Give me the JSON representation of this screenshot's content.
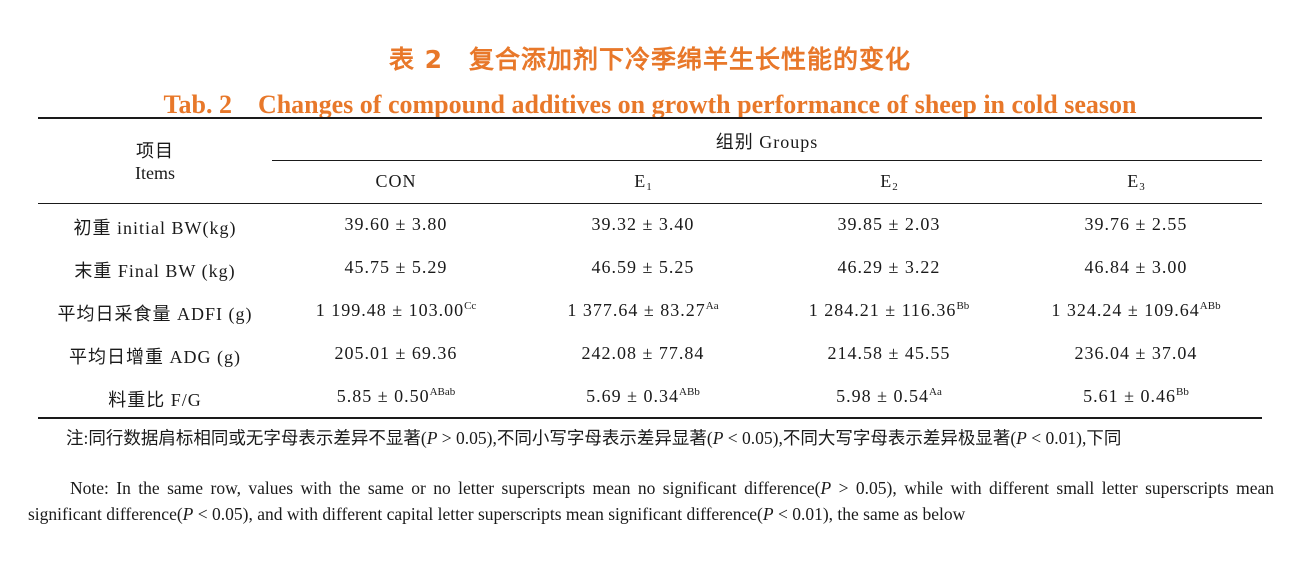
{
  "title": {
    "cn": "表 2　复合添加剂下冷季绵羊生长性能的变化",
    "en": "Tab. 2　Changes of compound additives on growth performance of sheep in cold season"
  },
  "header": {
    "items_cn": "项目",
    "items_en": "Items",
    "groups": "组别 Groups",
    "columns": [
      {
        "main": "CON",
        "sub": ""
      },
      {
        "main": "E",
        "sub": "1"
      },
      {
        "main": "E",
        "sub": "2"
      },
      {
        "main": "E",
        "sub": "3"
      }
    ]
  },
  "rows": [
    {
      "label": "初重 initial BW(kg)",
      "cells": [
        {
          "value": "39.60 ± 3.80",
          "sup": ""
        },
        {
          "value": "39.32 ± 3.40",
          "sup": ""
        },
        {
          "value": "39.85 ± 2.03",
          "sup": ""
        },
        {
          "value": "39.76 ± 2.55",
          "sup": ""
        }
      ]
    },
    {
      "label": "末重 Final BW (kg)",
      "cells": [
        {
          "value": "45.75 ± 5.29",
          "sup": ""
        },
        {
          "value": "46.59 ± 5.25",
          "sup": ""
        },
        {
          "value": "46.29 ± 3.22",
          "sup": ""
        },
        {
          "value": "46.84 ± 3.00",
          "sup": ""
        }
      ]
    },
    {
      "label": "平均日采食量 ADFI (g)",
      "cells": [
        {
          "value": "1 199.48 ± 103.00",
          "sup": "Cc"
        },
        {
          "value": "1 377.64 ± 83.27",
          "sup": "Aa"
        },
        {
          "value": "1 284.21 ± 116.36",
          "sup": "Bb"
        },
        {
          "value": "1 324.24 ± 109.64",
          "sup": "ABb"
        }
      ]
    },
    {
      "label": "平均日增重 ADG (g)",
      "cells": [
        {
          "value": "205.01 ± 69.36",
          "sup": ""
        },
        {
          "value": "242.08 ± 77.84",
          "sup": ""
        },
        {
          "value": "214.58 ± 45.55",
          "sup": ""
        },
        {
          "value": "236.04 ± 37.04",
          "sup": ""
        }
      ]
    },
    {
      "label": "料重比 F/G",
      "cells": [
        {
          "value": "5.85 ± 0.50",
          "sup": "ABab"
        },
        {
          "value": "5.69 ± 0.34",
          "sup": "ABb"
        },
        {
          "value": "5.98 ± 0.54",
          "sup": "Aa"
        },
        {
          "value": "5.61 ± 0.46",
          "sup": "Bb"
        }
      ]
    }
  ],
  "note": {
    "cn_1": "注:同行数据肩标相同或无字母表示差异不显著(",
    "cn_p1": "P",
    "cn_2": " > 0.05),不同小写字母表示差异显著(",
    "cn_p2": "P",
    "cn_3": " < 0.05),不同大写字母表示差异极显著(",
    "cn_p3": "P",
    "cn_4": " < 0.01),下同",
    "en_1": "Note: In the same row, values with the same or no letter superscripts mean no significant difference(",
    "en_p1": "P",
    "en_2": " > 0.05), while with different small letter superscripts mean significant difference(",
    "en_p2": "P",
    "en_3": " < 0.05), and with different capital letter superscripts mean significant difference(",
    "en_p3": "P",
    "en_4": " < 0.01), the same as below"
  }
}
